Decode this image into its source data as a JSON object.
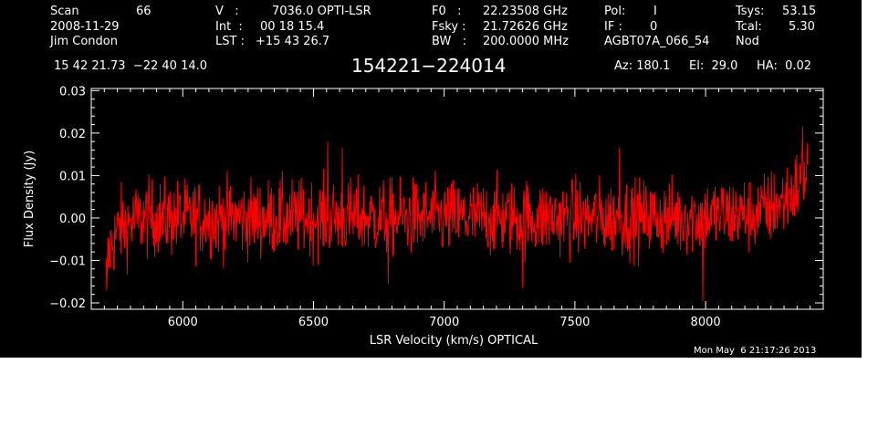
{
  "header": {
    "scan_label": "Scan",
    "scan_value": "66",
    "date": "2008-11-29",
    "observer": "Jim Condon",
    "v_label": "V   :",
    "v_value": "7036.0 OPTI-LSR",
    "int_label": "Int  :",
    "int_value": "00 18 15.4",
    "lst_label": "LST :",
    "lst_value": "+15 43 26.7",
    "f0_label": "F0   :",
    "f0_value": "22.23508 GHz",
    "fsky_label": "Fsky :",
    "fsky_value": "21.72626 GHz",
    "bw_label": "BW   :",
    "bw_value": "200.0000 MHz",
    "pol_label": "Pol:",
    "pol_value": "I",
    "if_label": "IF :",
    "if_value": "0",
    "project": "AGBT07A_066_54",
    "tsys_label": "Tsys:",
    "tsys_value": "53.15",
    "tcal_label": "Tcal:",
    "tcal_value": "5.30",
    "mode": "Nod",
    "coords": "15 42 21.73  −22 40 14.0",
    "source": "154221−224014",
    "az": "Az: 180.1",
    "el": "El:  29.0",
    "ha": "HA:  0.02"
  },
  "timestamp": "Mon May  6 21:17:26 2013",
  "chart_data": {
    "type": "line",
    "xlabel": "LSR Velocity (km/s) OPTICAL",
    "ylabel": "Flux Density (Jy)",
    "xlim": [
      5650,
      8450
    ],
    "ylim": [
      -0.0215,
      0.0305
    ],
    "x_ticks": [
      6000,
      6500,
      7000,
      7500,
      8000
    ],
    "x_tick_labels": [
      "6000",
      "6500",
      "7000",
      "7500",
      "8000"
    ],
    "y_ticks": [
      -0.02,
      -0.01,
      0.0,
      0.01,
      0.02,
      0.03
    ],
    "y_tick_labels": [
      "−0.02",
      "−0.01",
      "0.00",
      "0.01",
      "0.02",
      "0.03"
    ],
    "colors": {
      "background": "#000000",
      "axes": "#ffffff",
      "series": "#ff0000"
    },
    "series": [
      {
        "x_start": 5705,
        "x_end": 8390,
        "n_points": 1300,
        "noise_rms_jy": 0.0045,
        "baseline_points": [
          [
            5705,
            -0.014
          ],
          [
            5720,
            -0.007
          ],
          [
            5760,
            -0.002
          ],
          [
            5850,
            0.0
          ],
          [
            6200,
            0.0
          ],
          [
            7000,
            0.0
          ],
          [
            7800,
            0.0
          ],
          [
            8200,
            0.001
          ],
          [
            8300,
            0.004
          ],
          [
            8360,
            0.008
          ],
          [
            8390,
            0.012
          ]
        ],
        "peaks": [
          [
            5710,
            -0.017
          ],
          [
            6555,
            0.018
          ],
          [
            6610,
            0.0165
          ],
          [
            6785,
            -0.0155
          ],
          [
            7300,
            -0.0165
          ],
          [
            7670,
            0.0165
          ],
          [
            7990,
            -0.0195
          ],
          [
            8372,
            0.0215
          ]
        ]
      }
    ]
  }
}
